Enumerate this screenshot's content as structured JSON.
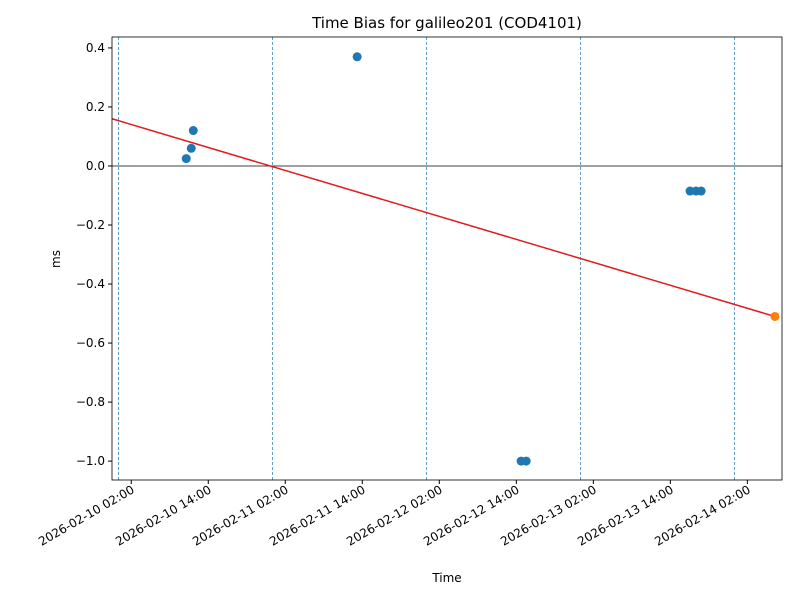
{
  "chart_data": {
    "type": "scatter",
    "title": "Time Bias for galileo201 (COD4101)",
    "x_label": "Time",
    "y_label": "ms",
    "xlim": [
      "2026-02-09 23:00",
      "2026-02-14 07:24"
    ],
    "xticks": [
      "2026-02-10 02:00",
      "2026-02-10 14:00",
      "2026-02-11 02:00",
      "2026-02-11 14:00",
      "2026-02-12 02:00",
      "2026-02-12 14:00",
      "2026-02-13 02:00",
      "2026-02-13 14:00",
      "2026-02-14 02:00"
    ],
    "ylim": [
      -1.064,
      0.437
    ],
    "yticks": [
      0.4,
      0.2,
      {
        "value": 0,
        "label": "0.0"
      },
      {
        "value": -0.2,
        "label": "−0.2"
      },
      {
        "value": -0.4,
        "label": "−0.4"
      },
      {
        "value": -0.6,
        "label": "−0.6"
      },
      {
        "value": -0.8,
        "label": "−0.8"
      },
      {
        "value": -1.0,
        "label": "−1.0"
      }
    ],
    "day_lines": [
      "2026-02-10 00:00",
      "2026-02-11 00:00",
      "2026-02-12 00:00",
      "2026-02-13 00:00",
      "2026-02-14 00:00"
    ],
    "day_line_color": "#1f77b4",
    "zero_line": 0,
    "series": [
      {
        "color": "#1f77b4",
        "x": [
          "2026-02-10 10:34",
          "2026-02-10 11:21",
          "2026-02-10 11:40",
          "2026-02-11 13:12",
          "2026-02-12 14:45",
          "2026-02-12 15:32",
          "2026-02-13 17:04",
          "2026-02-13 18:00",
          "2026-02-13 18:48"
        ],
        "values": [
          0.025,
          0.06,
          0.12,
          0.37,
          -1.0,
          -1.0,
          -0.085,
          -0.085,
          -0.085
        ]
      },
      {
        "color": "#ff7f0e",
        "x": [
          "2026-02-14 06:18"
        ],
        "values": [
          -0.51
        ]
      }
    ],
    "fit": {
      "color": "#e31a1c",
      "x": [
        "2026-02-09 23:00",
        "2026-02-14 06:18"
      ],
      "values": [
        0.16,
        -0.51
      ]
    }
  }
}
